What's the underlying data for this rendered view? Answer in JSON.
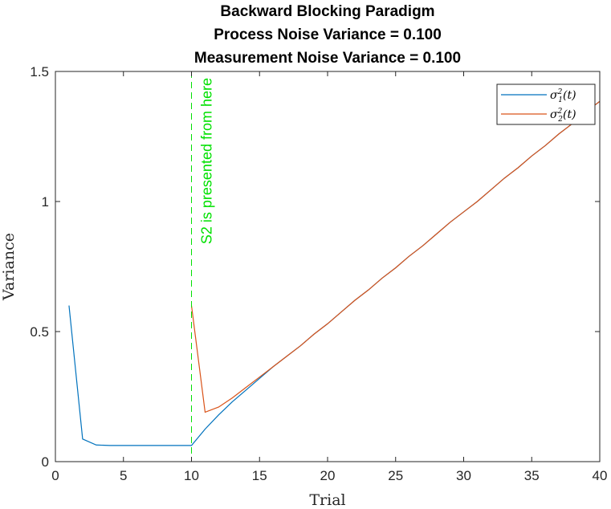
{
  "chart_data": {
    "type": "line",
    "title": [
      "Backward Blocking Paradigm",
      "Process Noise Variance = 0.100",
      "Measurement Noise Variance = 0.100"
    ],
    "xlabel": "Trial",
    "ylabel": "Variance",
    "xlim": [
      0,
      40
    ],
    "ylim": [
      0,
      1.5
    ],
    "xticks": [
      0,
      5,
      10,
      15,
      20,
      25,
      30,
      35,
      40
    ],
    "yticks": [
      0,
      0.5,
      1,
      1.5
    ],
    "xtick_labels": [
      "0",
      "5",
      "10",
      "15",
      "20",
      "25",
      "30",
      "35",
      "40"
    ],
    "ytick_labels": [
      "0",
      "0.5",
      "1",
      "1.5"
    ],
    "grid": false,
    "legend_position": "top-right",
    "series": [
      {
        "name": "σ1²(t)",
        "label_base": "σ",
        "label_sub": "1",
        "label_sup": "2",
        "label_arg": "(t)",
        "color": "#0072BD",
        "x": [
          1,
          2,
          3,
          4,
          5,
          6,
          7,
          8,
          9,
          10,
          11,
          12,
          13,
          14,
          15,
          16,
          17,
          18,
          19,
          20,
          21,
          22,
          23,
          24,
          25,
          26,
          27,
          28,
          29,
          30,
          31,
          32,
          33,
          34,
          35,
          36,
          37,
          38,
          39,
          40
        ],
        "y": [
          0.6,
          0.087,
          0.064,
          0.062,
          0.062,
          0.062,
          0.062,
          0.062,
          0.062,
          0.062,
          0.125,
          0.18,
          0.23,
          0.275,
          0.32,
          0.365,
          0.405,
          0.445,
          0.49,
          0.53,
          0.575,
          0.62,
          0.66,
          0.705,
          0.745,
          0.79,
          0.83,
          0.875,
          0.92,
          0.96,
          1.0,
          1.045,
          1.09,
          1.13,
          1.175,
          1.215,
          1.26,
          1.3,
          1.345,
          1.385
        ]
      },
      {
        "name": "σ2²(t)",
        "label_base": "σ",
        "label_sub": "2",
        "label_sup": "2",
        "label_arg": "(t)",
        "color": "#D95319",
        "x": [
          10,
          11,
          12,
          13,
          14,
          15,
          16,
          17,
          18,
          19,
          20,
          21,
          22,
          23,
          24,
          25,
          26,
          27,
          28,
          29,
          30,
          31,
          32,
          33,
          34,
          35,
          36,
          37,
          38,
          39,
          40
        ],
        "y": [
          0.6,
          0.19,
          0.21,
          0.245,
          0.285,
          0.325,
          0.365,
          0.405,
          0.445,
          0.49,
          0.53,
          0.575,
          0.62,
          0.66,
          0.705,
          0.745,
          0.79,
          0.83,
          0.875,
          0.92,
          0.96,
          1.0,
          1.045,
          1.09,
          1.13,
          1.175,
          1.215,
          1.26,
          1.3,
          1.345,
          1.385
        ]
      }
    ],
    "annotations": [
      {
        "type": "vline",
        "x": 10,
        "color": "#00e000",
        "style": "dashed",
        "text": "S2 is presented from here"
      }
    ]
  }
}
